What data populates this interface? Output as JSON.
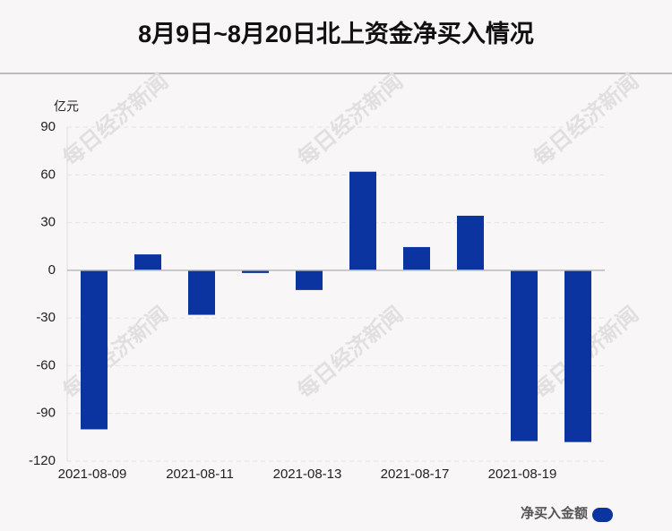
{
  "chart_data": {
    "type": "bar",
    "title": "8月9日~8月20日北上资金净买入情况",
    "y_axis_label": "亿元",
    "watermark": "每日经济新闻",
    "categories": [
      "2021-08-09",
      null,
      "2021-08-11",
      null,
      "2021-08-13",
      null,
      "2021-08-17",
      null,
      "2021-08-19",
      null
    ],
    "series": [
      {
        "name": "净买入金额",
        "color": "#0c34a0",
        "values": [
          -100,
          10,
          -28,
          -1.7,
          -12.4,
          62,
          14.6,
          34.3,
          -107.4,
          -108
        ]
      }
    ],
    "ylim": [
      -120,
      90
    ],
    "yticks": [
      -120,
      -90,
      -60,
      -30,
      0,
      30,
      60,
      90
    ],
    "grid": true,
    "legend": "bottom-right"
  }
}
